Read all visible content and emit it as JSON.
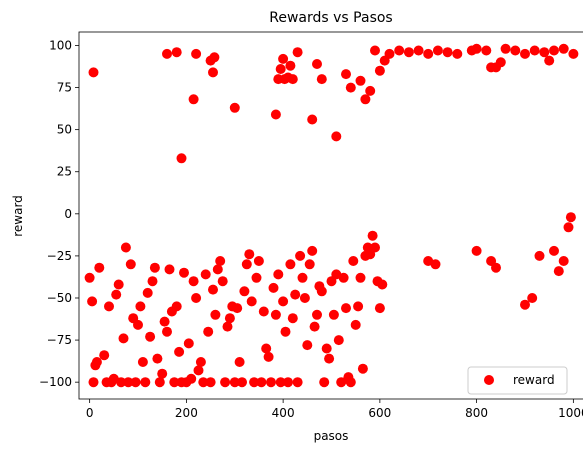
{
  "chart_data": {
    "type": "scatter",
    "title": "Rewards vs Pasos",
    "xlabel": "pasos",
    "ylabel": "reward",
    "xlim": [
      -22,
      1022
    ],
    "ylim": [
      -110,
      108
    ],
    "xticks": [
      0,
      200,
      400,
      600,
      800,
      1000
    ],
    "xtick_labels": [
      "0",
      "200",
      "400",
      "600",
      "800",
      "1000"
    ],
    "yticks": [
      -100,
      -75,
      -50,
      -25,
      0,
      25,
      50,
      75,
      100
    ],
    "ytick_labels": [
      "−100",
      "−75",
      "−50",
      "−25",
      "0",
      "25",
      "50",
      "75",
      "100"
    ],
    "grid": false,
    "legend_position": "lower-right",
    "series": [
      {
        "name": "reward",
        "color": "#ff0000",
        "marker": "circle",
        "note": "≈1000 points (one per paso 0–999); values below are a representative sample read from the plot",
        "points": [
          [
            8,
            84
          ],
          [
            160,
            95
          ],
          [
            180,
            96
          ],
          [
            190,
            33
          ],
          [
            215,
            68
          ],
          [
            220,
            95
          ],
          [
            250,
            91
          ],
          [
            255,
            84
          ],
          [
            258,
            93
          ],
          [
            300,
            63
          ],
          [
            385,
            59
          ],
          [
            390,
            80
          ],
          [
            395,
            86
          ],
          [
            400,
            92
          ],
          [
            403,
            80
          ],
          [
            410,
            81
          ],
          [
            415,
            88
          ],
          [
            420,
            80
          ],
          [
            430,
            96
          ],
          [
            460,
            56
          ],
          [
            470,
            89
          ],
          [
            480,
            80
          ],
          [
            510,
            46
          ],
          [
            530,
            83
          ],
          [
            540,
            75
          ],
          [
            560,
            79
          ],
          [
            570,
            68
          ],
          [
            580,
            73
          ],
          [
            590,
            97
          ],
          [
            600,
            85
          ],
          [
            610,
            91
          ],
          [
            620,
            95
          ],
          [
            640,
            97
          ],
          [
            660,
            96
          ],
          [
            680,
            97
          ],
          [
            700,
            95
          ],
          [
            720,
            97
          ],
          [
            740,
            96
          ],
          [
            760,
            95
          ],
          [
            790,
            97
          ],
          [
            800,
            98
          ],
          [
            820,
            97
          ],
          [
            830,
            87
          ],
          [
            840,
            87
          ],
          [
            850,
            90
          ],
          [
            860,
            98
          ],
          [
            880,
            97
          ],
          [
            900,
            95
          ],
          [
            920,
            97
          ],
          [
            940,
            96
          ],
          [
            950,
            91
          ],
          [
            960,
            97
          ],
          [
            980,
            98
          ],
          [
            1000,
            95
          ],
          [
            0,
            -38
          ],
          [
            5,
            -52
          ],
          [
            8,
            -100
          ],
          [
            12,
            -90
          ],
          [
            15,
            -88
          ],
          [
            20,
            -32
          ],
          [
            30,
            -84
          ],
          [
            35,
            -100
          ],
          [
            40,
            -55
          ],
          [
            45,
            -100
          ],
          [
            50,
            -98
          ],
          [
            55,
            -48
          ],
          [
            60,
            -42
          ],
          [
            65,
            -100
          ],
          [
            70,
            -74
          ],
          [
            75,
            -20
          ],
          [
            80,
            -100
          ],
          [
            85,
            -30
          ],
          [
            90,
            -62
          ],
          [
            95,
            -100
          ],
          [
            100,
            -66
          ],
          [
            105,
            -55
          ],
          [
            110,
            -88
          ],
          [
            115,
            -100
          ],
          [
            120,
            -47
          ],
          [
            125,
            -73
          ],
          [
            130,
            -40
          ],
          [
            135,
            -32
          ],
          [
            140,
            -86
          ],
          [
            145,
            -100
          ],
          [
            150,
            -95
          ],
          [
            155,
            -64
          ],
          [
            160,
            -70
          ],
          [
            165,
            -33
          ],
          [
            170,
            -58
          ],
          [
            175,
            -100
          ],
          [
            180,
            -55
          ],
          [
            185,
            -82
          ],
          [
            190,
            -100
          ],
          [
            195,
            -35
          ],
          [
            200,
            -100
          ],
          [
            205,
            -77
          ],
          [
            210,
            -98
          ],
          [
            215,
            -40
          ],
          [
            220,
            -50
          ],
          [
            225,
            -93
          ],
          [
            230,
            -88
          ],
          [
            235,
            -100
          ],
          [
            240,
            -36
          ],
          [
            245,
            -70
          ],
          [
            250,
            -100
          ],
          [
            255,
            -45
          ],
          [
            260,
            -60
          ],
          [
            265,
            -33
          ],
          [
            270,
            -28
          ],
          [
            275,
            -40
          ],
          [
            280,
            -100
          ],
          [
            285,
            -67
          ],
          [
            290,
            -62
          ],
          [
            295,
            -55
          ],
          [
            300,
            -100
          ],
          [
            305,
            -56
          ],
          [
            310,
            -88
          ],
          [
            315,
            -100
          ],
          [
            320,
            -46
          ],
          [
            325,
            -30
          ],
          [
            330,
            -24
          ],
          [
            335,
            -52
          ],
          [
            340,
            -100
          ],
          [
            345,
            -38
          ],
          [
            350,
            -28
          ],
          [
            355,
            -100
          ],
          [
            360,
            -58
          ],
          [
            365,
            -80
          ],
          [
            370,
            -85
          ],
          [
            375,
            -100
          ],
          [
            380,
            -44
          ],
          [
            385,
            -60
          ],
          [
            390,
            -36
          ],
          [
            395,
            -100
          ],
          [
            400,
            -52
          ],
          [
            405,
            -70
          ],
          [
            410,
            -100
          ],
          [
            415,
            -30
          ],
          [
            420,
            -62
          ],
          [
            425,
            -48
          ],
          [
            430,
            -100
          ],
          [
            435,
            -25
          ],
          [
            440,
            -38
          ],
          [
            445,
            -50
          ],
          [
            450,
            -78
          ],
          [
            455,
            -30
          ],
          [
            460,
            -22
          ],
          [
            465,
            -67
          ],
          [
            470,
            -60
          ],
          [
            475,
            -43
          ],
          [
            480,
            -46
          ],
          [
            485,
            -100
          ],
          [
            490,
            -80
          ],
          [
            495,
            -86
          ],
          [
            500,
            -40
          ],
          [
            505,
            -60
          ],
          [
            510,
            -36
          ],
          [
            515,
            -75
          ],
          [
            520,
            -100
          ],
          [
            525,
            -38
          ],
          [
            530,
            -56
          ],
          [
            535,
            -97
          ],
          [
            540,
            -100
          ],
          [
            545,
            -28
          ],
          [
            550,
            -66
          ],
          [
            555,
            -55
          ],
          [
            560,
            -38
          ],
          [
            565,
            -92
          ],
          [
            570,
            -25
          ],
          [
            575,
            -20
          ],
          [
            580,
            -24
          ],
          [
            585,
            -13
          ],
          [
            590,
            -20
          ],
          [
            595,
            -40
          ],
          [
            600,
            -56
          ],
          [
            605,
            -42
          ],
          [
            700,
            -28
          ],
          [
            715,
            -30
          ],
          [
            800,
            -22
          ],
          [
            830,
            -28
          ],
          [
            840,
            -32
          ],
          [
            900,
            -54
          ],
          [
            915,
            -50
          ],
          [
            930,
            -25
          ],
          [
            960,
            -22
          ],
          [
            970,
            -34
          ],
          [
            980,
            -28
          ],
          [
            990,
            -8
          ],
          [
            995,
            -2
          ]
        ]
      }
    ]
  }
}
